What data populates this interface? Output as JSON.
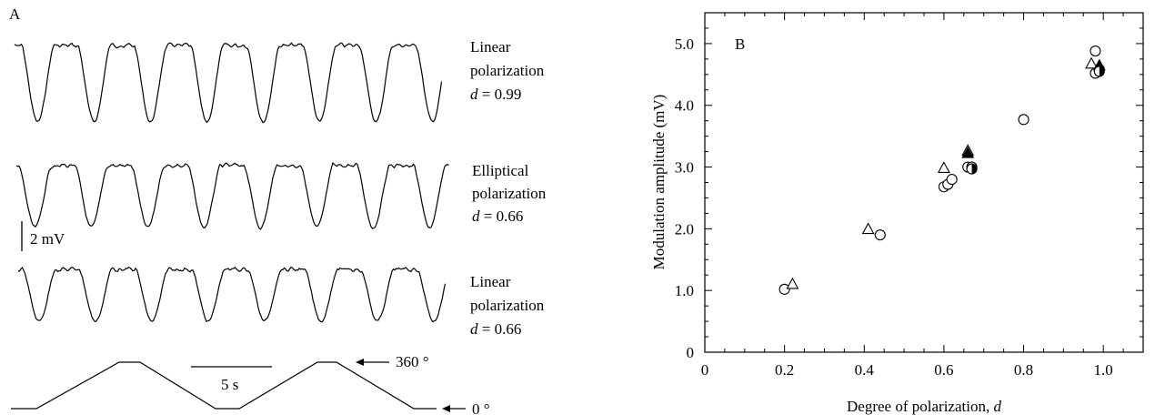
{
  "panel_a": {
    "label": "A",
    "traces": [
      {
        "line1": "Linear",
        "line2": "polarization",
        "d_symbol": "d",
        "d_text": " = 0.99"
      },
      {
        "line1": "Elliptical",
        "line2": "polarization",
        "d_symbol": "d",
        "d_text": " = 0.66"
      },
      {
        "line1": "Linear",
        "line2": "polarization",
        "d_symbol": "d",
        "d_text": " = 0.66"
      }
    ],
    "voltage_scale": "2 mV",
    "time_scale": "5 s",
    "angle_max": "360 °",
    "angle_min": "0 °"
  },
  "chart_data": {
    "type": "scatter",
    "panel_label": "B",
    "xlabel": "Degree of polarization, ",
    "xlabel_symbol": "d",
    "ylabel": "Modulation amplitude (mV)",
    "xlim": [
      0,
      1.1
    ],
    "ylim": [
      0,
      5.5
    ],
    "xticks": [
      0,
      0.2,
      0.4,
      0.6,
      0.8,
      1.0
    ],
    "xtick_labels": [
      "0",
      "0.2",
      "0.4",
      "0.6",
      "0.8",
      "1.0"
    ],
    "yticks": [
      0,
      1,
      2,
      3,
      4,
      5
    ],
    "ytick_labels": [
      "0",
      "1.0",
      "2.0",
      "3.0",
      "4.0",
      "5.0"
    ],
    "series": [
      {
        "marker": "open-circle",
        "points": [
          [
            0.2,
            1.02
          ],
          [
            0.44,
            1.9
          ],
          [
            0.6,
            2.68
          ],
          [
            0.61,
            2.72
          ],
          [
            0.62,
            2.8
          ],
          [
            0.66,
            3.0
          ],
          [
            0.67,
            3.0
          ],
          [
            0.8,
            3.77
          ],
          [
            0.98,
            4.88
          ],
          [
            0.98,
            4.52
          ],
          [
            0.99,
            4.58
          ]
        ]
      },
      {
        "marker": "open-triangle",
        "points": [
          [
            0.22,
            1.1
          ],
          [
            0.41,
            1.99
          ],
          [
            0.6,
            2.98
          ],
          [
            0.66,
            3.26
          ],
          [
            0.97,
            4.67
          ]
        ]
      },
      {
        "marker": "filled-triangle",
        "points": [
          [
            0.66,
            3.22
          ],
          [
            0.99,
            4.64
          ]
        ]
      },
      {
        "marker": "half-filled-circle",
        "points": [
          [
            0.67,
            2.97
          ],
          [
            0.99,
            4.55
          ]
        ]
      }
    ]
  }
}
